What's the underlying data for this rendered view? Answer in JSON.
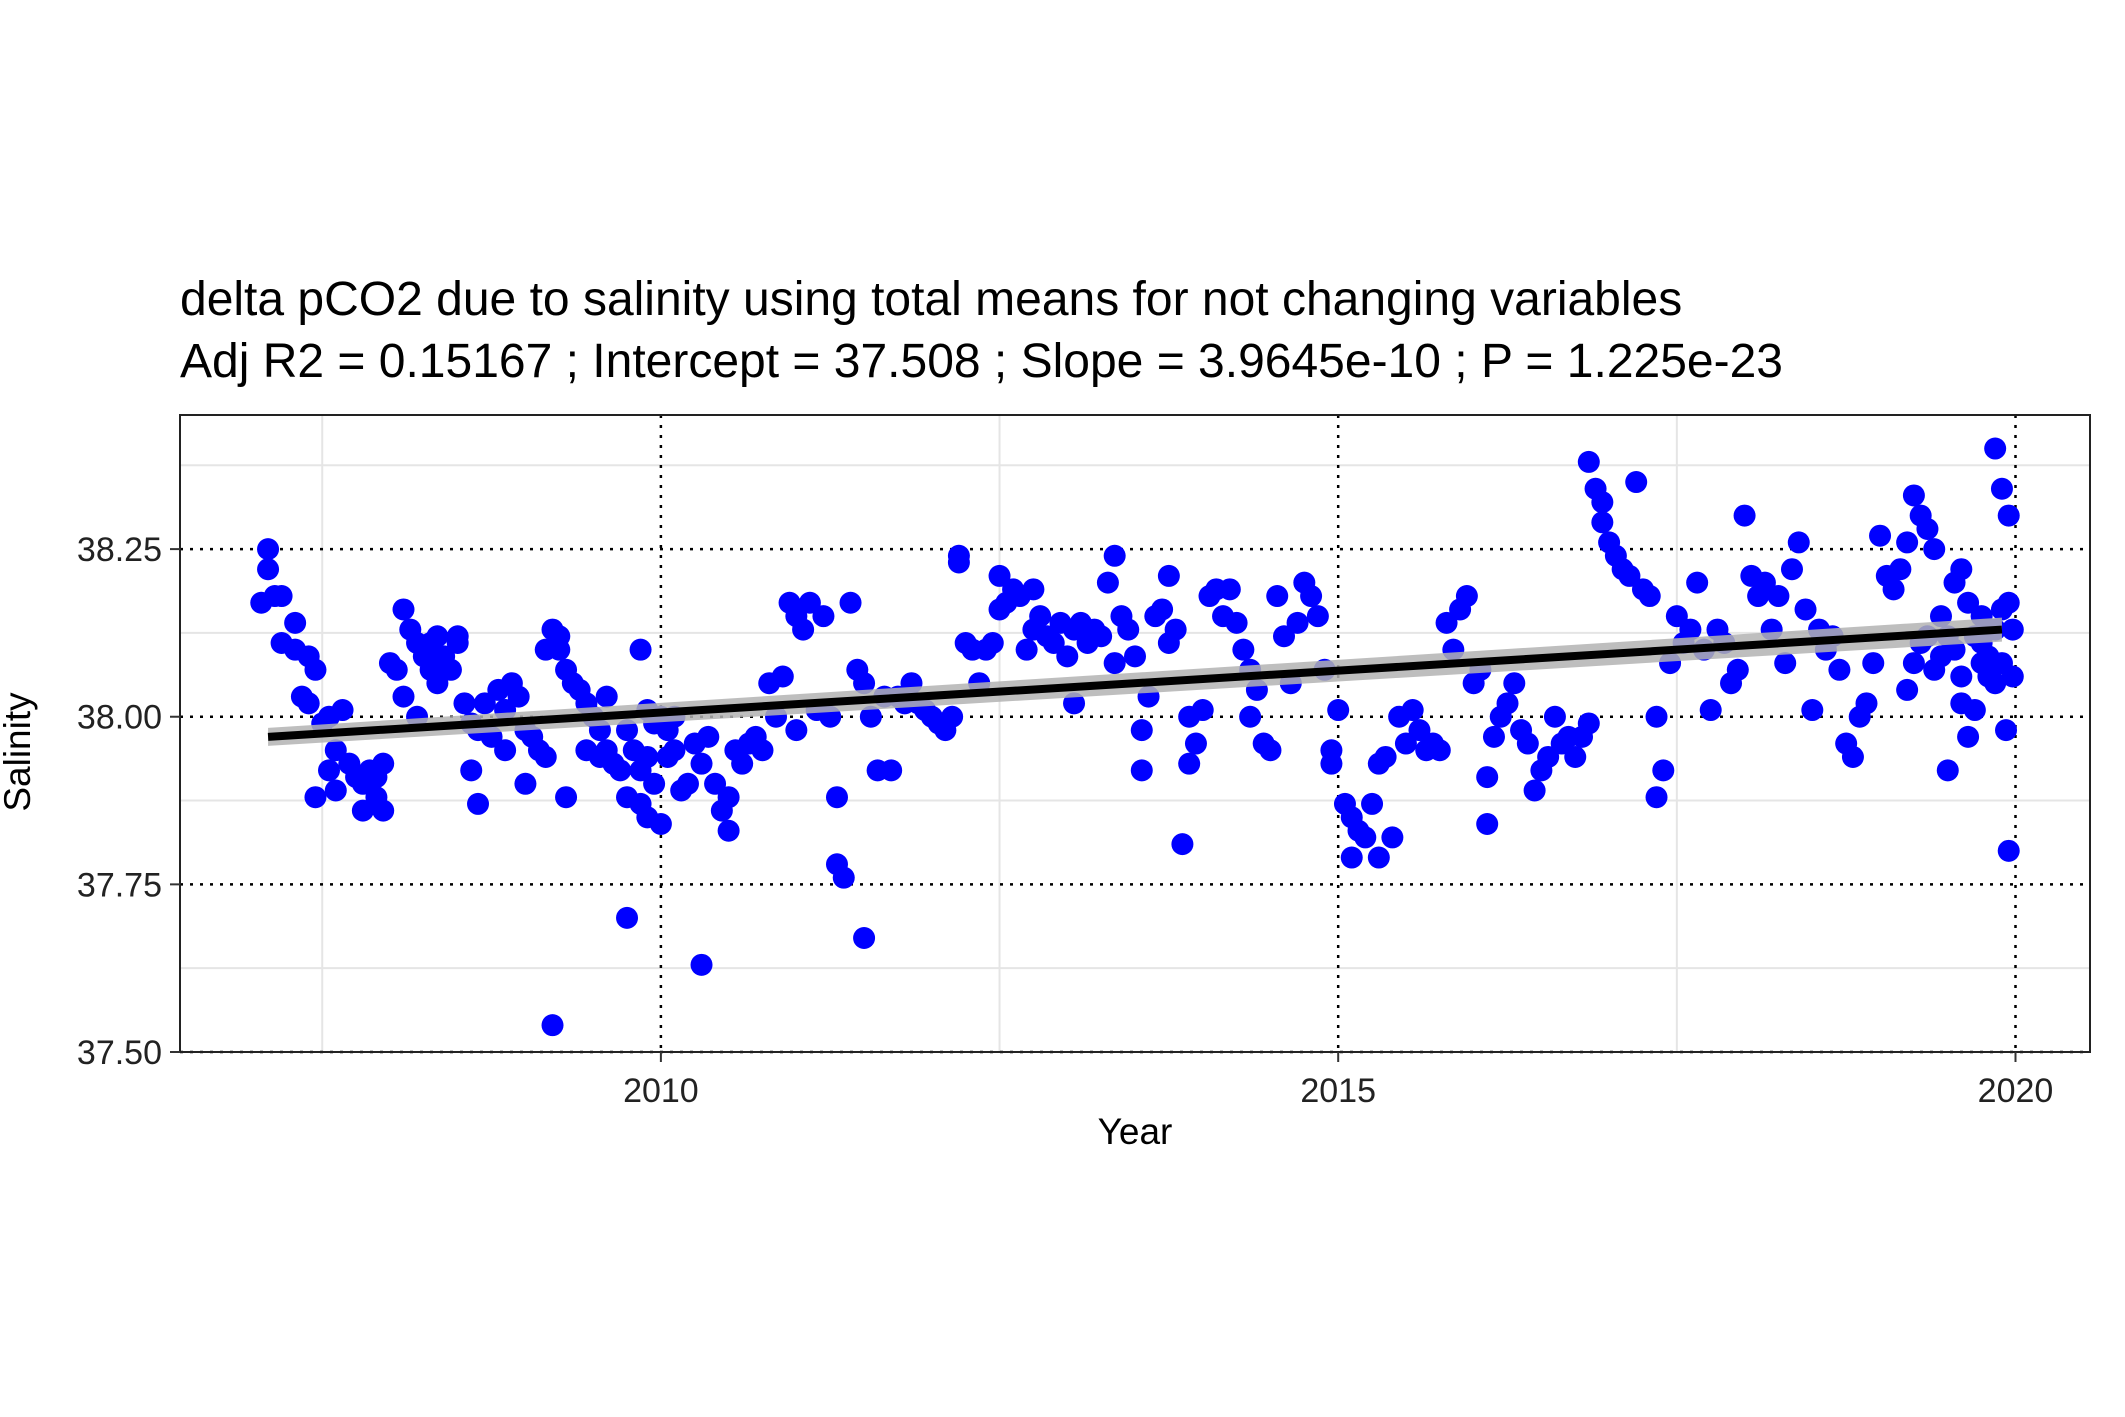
{
  "chart_data": {
    "type": "scatter",
    "title": "delta pCO2 due to salinity using total means for not changing variables",
    "subtitle": "Adj R2 =  0.15167 ; Intercept = 37.508 ; Slope = 3.9645e-10 ; P = 1.225e-23",
    "xlabel": "Year",
    "ylabel": "Salinity",
    "xlim": [
      2006.45,
      2020.55
    ],
    "ylim": [
      37.5,
      38.45
    ],
    "x_ticks": [
      "2010",
      "2015",
      "2020"
    ],
    "x_tick_values": [
      2010,
      2015,
      2020
    ],
    "y_ticks": [
      "37.50",
      "37.75",
      "38.00",
      "38.25"
    ],
    "y_tick_values": [
      37.5,
      37.75,
      38.0,
      38.25
    ],
    "grid": true,
    "reference_lines": {
      "x": [
        2010,
        2015,
        2020
      ],
      "y": [
        37.75,
        38.0,
        38.25
      ],
      "style": "dotted"
    },
    "point_color": "#0000ff",
    "trend_color": "#000000",
    "ribbon_color": "#b3b3b3",
    "trend_line": {
      "x": [
        2007.1,
        2019.9
      ],
      "y": [
        37.97,
        38.13
      ]
    },
    "points": [
      [
        2007.05,
        38.17
      ],
      [
        2007.1,
        38.25
      ],
      [
        2007.1,
        38.22
      ],
      [
        2007.15,
        38.18
      ],
      [
        2007.2,
        38.18
      ],
      [
        2007.2,
        38.11
      ],
      [
        2007.3,
        38.14
      ],
      [
        2007.3,
        38.1
      ],
      [
        2007.4,
        38.09
      ],
      [
        2007.45,
        38.07
      ],
      [
        2007.35,
        38.03
      ],
      [
        2007.4,
        38.02
      ],
      [
        2007.45,
        37.88
      ],
      [
        2007.5,
        37.99
      ],
      [
        2007.55,
        38.0
      ],
      [
        2007.55,
        37.92
      ],
      [
        2007.6,
        37.95
      ],
      [
        2007.6,
        37.89
      ],
      [
        2007.65,
        38.01
      ],
      [
        2007.7,
        37.93
      ],
      [
        2007.75,
        37.91
      ],
      [
        2007.8,
        37.9
      ],
      [
        2007.8,
        37.86
      ],
      [
        2007.85,
        37.92
      ],
      [
        2007.9,
        37.91
      ],
      [
        2007.95,
        37.93
      ],
      [
        2007.95,
        37.86
      ],
      [
        2007.9,
        37.88
      ],
      [
        2008.0,
        38.08
      ],
      [
        2008.05,
        38.07
      ],
      [
        2008.1,
        38.16
      ],
      [
        2008.15,
        38.13
      ],
      [
        2008.1,
        38.03
      ],
      [
        2008.2,
        38.11
      ],
      [
        2008.2,
        38.0
      ],
      [
        2008.25,
        38.09
      ],
      [
        2008.3,
        38.07
      ],
      [
        2008.3,
        38.11
      ],
      [
        2008.35,
        38.05
      ],
      [
        2008.35,
        38.12
      ],
      [
        2008.4,
        38.09
      ],
      [
        2008.45,
        38.07
      ],
      [
        2008.5,
        38.11
      ],
      [
        2008.5,
        38.12
      ],
      [
        2008.55,
        38.02
      ],
      [
        2008.6,
        37.99
      ],
      [
        2008.6,
        37.92
      ],
      [
        2008.65,
        37.98
      ],
      [
        2008.65,
        37.87
      ],
      [
        2008.7,
        38.02
      ],
      [
        2008.75,
        37.97
      ],
      [
        2008.8,
        38.04
      ],
      [
        2008.85,
        37.95
      ],
      [
        2008.85,
        38.01
      ],
      [
        2008.9,
        38.05
      ],
      [
        2008.95,
        38.03
      ],
      [
        2009.0,
        37.98
      ],
      [
        2009.0,
        37.9
      ],
      [
        2009.05,
        37.97
      ],
      [
        2009.1,
        37.95
      ],
      [
        2009.15,
        37.94
      ],
      [
        2009.15,
        38.1
      ],
      [
        2009.2,
        38.13
      ],
      [
        2009.25,
        38.1
      ],
      [
        2009.25,
        38.12
      ],
      [
        2009.3,
        38.07
      ],
      [
        2009.3,
        37.88
      ],
      [
        2009.35,
        38.05
      ],
      [
        2009.4,
        38.04
      ],
      [
        2009.45,
        38.02
      ],
      [
        2009.45,
        37.95
      ],
      [
        2009.5,
        38.0
      ],
      [
        2009.55,
        37.94
      ],
      [
        2009.55,
        37.98
      ],
      [
        2009.6,
        38.03
      ],
      [
        2009.6,
        37.95
      ],
      [
        2009.65,
        37.93
      ],
      [
        2009.7,
        37.92
      ],
      [
        2009.75,
        37.7
      ],
      [
        2009.75,
        37.88
      ],
      [
        2009.8,
        37.95
      ],
      [
        2009.85,
        37.87
      ],
      [
        2009.85,
        37.92
      ],
      [
        2009.9,
        37.85
      ],
      [
        2009.9,
        37.94
      ],
      [
        2009.95,
        37.9
      ],
      [
        2010.0,
        37.84
      ],
      [
        2010.05,
        37.94
      ],
      [
        2009.2,
        37.54
      ],
      [
        2009.65,
        37.93
      ],
      [
        2009.75,
        37.98
      ],
      [
        2009.85,
        38.1
      ],
      [
        2009.9,
        38.01
      ],
      [
        2009.95,
        37.99
      ],
      [
        2010.0,
        38.0
      ],
      [
        2010.05,
        37.98
      ],
      [
        2010.1,
        38.0
      ],
      [
        2010.1,
        37.95
      ],
      [
        2010.15,
        37.89
      ],
      [
        2010.2,
        37.9
      ],
      [
        2010.25,
        37.96
      ],
      [
        2010.3,
        37.93
      ],
      [
        2010.3,
        37.63
      ],
      [
        2010.35,
        37.97
      ],
      [
        2010.4,
        37.9
      ],
      [
        2010.45,
        37.86
      ],
      [
        2010.5,
        37.83
      ],
      [
        2010.5,
        37.88
      ],
      [
        2010.55,
        37.95
      ],
      [
        2010.6,
        37.93
      ],
      [
        2010.65,
        37.96
      ],
      [
        2010.7,
        37.97
      ],
      [
        2010.75,
        37.95
      ],
      [
        2010.8,
        38.05
      ],
      [
        2010.85,
        38.0
      ],
      [
        2010.9,
        38.06
      ],
      [
        2010.95,
        38.17
      ],
      [
        2011.0,
        38.15
      ],
      [
        2011.0,
        37.98
      ],
      [
        2011.05,
        38.13
      ],
      [
        2011.1,
        38.17
      ],
      [
        2011.15,
        38.01
      ],
      [
        2011.2,
        38.15
      ],
      [
        2011.25,
        38.0
      ],
      [
        2011.3,
        37.88
      ],
      [
        2011.3,
        37.78
      ],
      [
        2011.35,
        37.76
      ],
      [
        2011.4,
        38.17
      ],
      [
        2011.45,
        38.07
      ],
      [
        2011.5,
        38.05
      ],
      [
        2011.5,
        37.67
      ],
      [
        2011.55,
        38.0
      ],
      [
        2011.6,
        37.92
      ],
      [
        2011.65,
        38.03
      ],
      [
        2011.7,
        37.92
      ],
      [
        2011.75,
        38.03
      ],
      [
        2011.8,
        38.02
      ],
      [
        2011.85,
        38.05
      ],
      [
        2011.9,
        38.02
      ],
      [
        2011.95,
        38.01
      ],
      [
        2012.0,
        38.0
      ],
      [
        2012.05,
        37.99
      ],
      [
        2012.1,
        37.98
      ],
      [
        2012.15,
        38.0
      ],
      [
        2012.2,
        38.24
      ],
      [
        2012.2,
        38.23
      ],
      [
        2012.25,
        38.11
      ],
      [
        2012.3,
        38.1
      ],
      [
        2012.35,
        38.05
      ],
      [
        2012.4,
        38.1
      ],
      [
        2012.45,
        38.11
      ],
      [
        2012.5,
        38.21
      ],
      [
        2012.5,
        38.16
      ],
      [
        2012.55,
        38.17
      ],
      [
        2012.6,
        38.19
      ],
      [
        2012.65,
        38.18
      ],
      [
        2012.7,
        38.1
      ],
      [
        2012.75,
        38.19
      ],
      [
        2012.75,
        38.13
      ],
      [
        2012.8,
        38.15
      ],
      [
        2012.85,
        38.12
      ],
      [
        2012.9,
        38.11
      ],
      [
        2012.95,
        38.14
      ],
      [
        2013.0,
        38.09
      ],
      [
        2013.05,
        38.02
      ],
      [
        2013.05,
        38.13
      ],
      [
        2013.1,
        38.14
      ],
      [
        2013.15,
        38.11
      ],
      [
        2013.2,
        38.13
      ],
      [
        2013.25,
        38.12
      ],
      [
        2013.3,
        38.2
      ],
      [
        2013.35,
        38.24
      ],
      [
        2013.35,
        38.08
      ],
      [
        2013.4,
        38.15
      ],
      [
        2013.45,
        38.13
      ],
      [
        2013.5,
        38.09
      ],
      [
        2013.55,
        37.98
      ],
      [
        2013.55,
        37.92
      ],
      [
        2013.6,
        38.03
      ],
      [
        2013.65,
        38.15
      ],
      [
        2013.7,
        38.16
      ],
      [
        2013.75,
        38.21
      ],
      [
        2013.75,
        38.11
      ],
      [
        2013.8,
        38.13
      ],
      [
        2013.85,
        37.81
      ],
      [
        2013.9,
        38.0
      ],
      [
        2013.9,
        37.93
      ],
      [
        2013.95,
        37.96
      ],
      [
        2014.0,
        38.01
      ],
      [
        2014.05,
        38.18
      ],
      [
        2014.1,
        38.19
      ],
      [
        2014.15,
        38.15
      ],
      [
        2014.2,
        38.19
      ],
      [
        2014.25,
        38.14
      ],
      [
        2014.3,
        38.1
      ],
      [
        2014.35,
        38.07
      ],
      [
        2014.35,
        38.0
      ],
      [
        2014.4,
        38.04
      ],
      [
        2014.45,
        37.96
      ],
      [
        2014.5,
        37.95
      ],
      [
        2014.55,
        38.18
      ],
      [
        2014.6,
        38.12
      ],
      [
        2014.65,
        38.05
      ],
      [
        2014.7,
        38.14
      ],
      [
        2014.75,
        38.2
      ],
      [
        2014.8,
        38.18
      ],
      [
        2014.85,
        38.15
      ],
      [
        2014.9,
        38.07
      ],
      [
        2014.95,
        37.93
      ],
      [
        2014.95,
        37.95
      ],
      [
        2015.0,
        38.01
      ],
      [
        2015.05,
        37.87
      ],
      [
        2015.1,
        37.85
      ],
      [
        2015.1,
        37.79
      ],
      [
        2015.15,
        37.83
      ],
      [
        2015.2,
        37.82
      ],
      [
        2015.25,
        37.87
      ],
      [
        2015.3,
        37.79
      ],
      [
        2015.3,
        37.93
      ],
      [
        2015.35,
        37.94
      ],
      [
        2015.4,
        37.82
      ],
      [
        2015.45,
        38.0
      ],
      [
        2015.5,
        37.96
      ],
      [
        2015.55,
        38.01
      ],
      [
        2015.6,
        37.98
      ],
      [
        2015.65,
        37.95
      ],
      [
        2015.7,
        37.96
      ],
      [
        2015.75,
        37.95
      ],
      [
        2015.8,
        38.14
      ],
      [
        2015.85,
        38.1
      ],
      [
        2015.9,
        38.16
      ],
      [
        2015.95,
        38.18
      ],
      [
        2016.0,
        38.05
      ],
      [
        2016.05,
        38.07
      ],
      [
        2016.1,
        37.91
      ],
      [
        2016.1,
        37.84
      ],
      [
        2016.15,
        37.97
      ],
      [
        2016.2,
        38.0
      ],
      [
        2016.25,
        38.02
      ],
      [
        2016.3,
        38.05
      ],
      [
        2016.35,
        37.98
      ],
      [
        2016.4,
        37.96
      ],
      [
        2016.45,
        37.89
      ],
      [
        2016.5,
        37.92
      ],
      [
        2016.55,
        37.94
      ],
      [
        2016.6,
        38.0
      ],
      [
        2016.65,
        37.96
      ],
      [
        2016.7,
        37.97
      ],
      [
        2016.75,
        37.94
      ],
      [
        2016.8,
        37.97
      ],
      [
        2016.85,
        37.99
      ],
      [
        2016.85,
        38.38
      ],
      [
        2016.9,
        38.34
      ],
      [
        2016.95,
        38.32
      ],
      [
        2016.95,
        38.29
      ],
      [
        2017.0,
        38.26
      ],
      [
        2017.05,
        38.24
      ],
      [
        2017.1,
        38.22
      ],
      [
        2017.15,
        38.21
      ],
      [
        2017.2,
        38.35
      ],
      [
        2017.25,
        38.19
      ],
      [
        2017.3,
        38.18
      ],
      [
        2017.35,
        38.0
      ],
      [
        2017.35,
        37.88
      ],
      [
        2017.4,
        37.92
      ],
      [
        2017.45,
        38.08
      ],
      [
        2017.5,
        38.15
      ],
      [
        2017.55,
        38.11
      ],
      [
        2017.6,
        38.13
      ],
      [
        2017.65,
        38.2
      ],
      [
        2017.7,
        38.1
      ],
      [
        2017.75,
        38.01
      ],
      [
        2017.8,
        38.13
      ],
      [
        2017.85,
        38.11
      ],
      [
        2017.9,
        38.05
      ],
      [
        2017.95,
        38.07
      ],
      [
        2018.0,
        38.3
      ],
      [
        2018.05,
        38.21
      ],
      [
        2018.1,
        38.18
      ],
      [
        2018.15,
        38.2
      ],
      [
        2018.2,
        38.13
      ],
      [
        2018.25,
        38.18
      ],
      [
        2018.3,
        38.08
      ],
      [
        2018.35,
        38.22
      ],
      [
        2018.4,
        38.26
      ],
      [
        2018.45,
        38.16
      ],
      [
        2018.5,
        38.01
      ],
      [
        2018.55,
        38.13
      ],
      [
        2018.6,
        38.1
      ],
      [
        2018.65,
        38.12
      ],
      [
        2018.7,
        38.07
      ],
      [
        2018.75,
        37.96
      ],
      [
        2018.8,
        37.94
      ],
      [
        2018.85,
        38.0
      ],
      [
        2018.9,
        38.02
      ],
      [
        2018.95,
        38.08
      ],
      [
        2019.0,
        38.27
      ],
      [
        2019.05,
        38.21
      ],
      [
        2019.1,
        38.19
      ],
      [
        2019.15,
        38.22
      ],
      [
        2019.2,
        38.26
      ],
      [
        2019.25,
        38.33
      ],
      [
        2019.3,
        38.3
      ],
      [
        2019.35,
        38.28
      ],
      [
        2019.4,
        38.25
      ],
      [
        2019.45,
        38.15
      ],
      [
        2019.5,
        38.12
      ],
      [
        2019.55,
        38.2
      ],
      [
        2019.6,
        38.22
      ],
      [
        2019.65,
        38.17
      ],
      [
        2019.7,
        38.12
      ],
      [
        2019.75,
        38.08
      ],
      [
        2019.8,
        38.09
      ],
      [
        2019.85,
        38.4
      ],
      [
        2019.9,
        38.34
      ],
      [
        2019.95,
        38.3
      ],
      [
        2019.98,
        38.13
      ],
      [
        2019.2,
        38.04
      ],
      [
        2019.35,
        38.12
      ],
      [
        2019.55,
        38.1
      ],
      [
        2019.75,
        38.15
      ],
      [
        2019.9,
        38.08
      ],
      [
        2019.93,
        37.98
      ],
      [
        2019.95,
        37.8
      ],
      [
        2019.8,
        38.06
      ],
      [
        2019.6,
        38.02
      ],
      [
        2019.4,
        38.07
      ],
      [
        2019.85,
        38.05
      ],
      [
        2019.7,
        38.01
      ],
      [
        2019.65,
        37.97
      ],
      [
        2019.5,
        37.92
      ],
      [
        2019.6,
        38.06
      ],
      [
        2019.75,
        38.11
      ],
      [
        2019.85,
        38.13
      ],
      [
        2019.9,
        38.16
      ],
      [
        2019.95,
        38.17
      ],
      [
        2019.98,
        38.06
      ],
      [
        2019.45,
        38.09
      ],
      [
        2019.3,
        38.11
      ],
      [
        2019.25,
        38.08
      ]
    ]
  }
}
